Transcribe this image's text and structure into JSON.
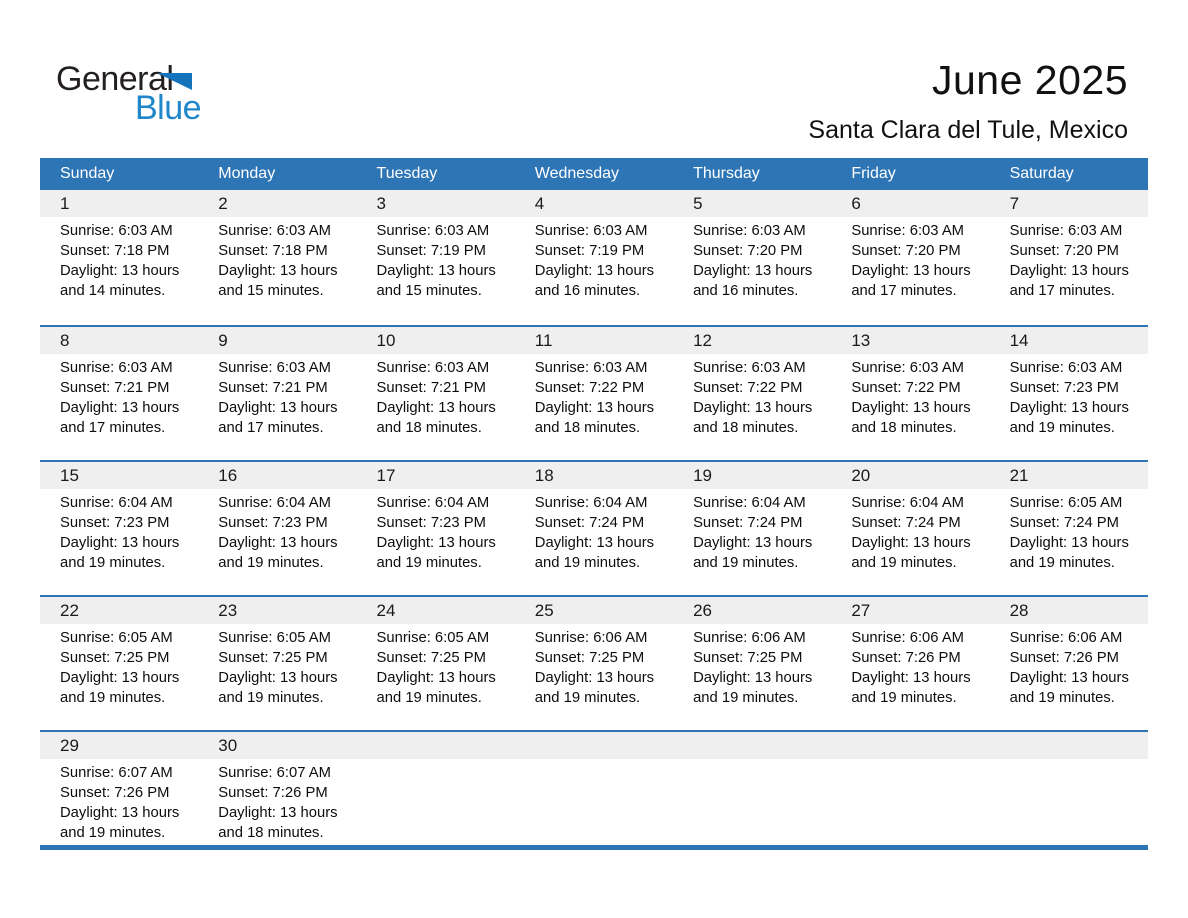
{
  "logo": {
    "general": "General",
    "blue": "Blue"
  },
  "header": {
    "title": "June 2025",
    "subtitle": "Santa Clara del Tule, Mexico"
  },
  "colors": {
    "header_bg": "#2e75b6",
    "separator": "#2e75b6",
    "day_strip_bg": "#efefef",
    "logo_triangle_blue": "#1573bb",
    "logo_text_blue": "#1e86c9"
  },
  "calendar": {
    "weekdays": [
      "Sunday",
      "Monday",
      "Tuesday",
      "Wednesday",
      "Thursday",
      "Friday",
      "Saturday"
    ],
    "weeks": [
      [
        {
          "day": "1",
          "sunrise": "Sunrise: 6:03 AM",
          "sunset": "Sunset: 7:18 PM",
          "daylight1": "Daylight: 13 hours",
          "daylight2": "and 14 minutes."
        },
        {
          "day": "2",
          "sunrise": "Sunrise: 6:03 AM",
          "sunset": "Sunset: 7:18 PM",
          "daylight1": "Daylight: 13 hours",
          "daylight2": "and 15 minutes."
        },
        {
          "day": "3",
          "sunrise": "Sunrise: 6:03 AM",
          "sunset": "Sunset: 7:19 PM",
          "daylight1": "Daylight: 13 hours",
          "daylight2": "and 15 minutes."
        },
        {
          "day": "4",
          "sunrise": "Sunrise: 6:03 AM",
          "sunset": "Sunset: 7:19 PM",
          "daylight1": "Daylight: 13 hours",
          "daylight2": "and 16 minutes."
        },
        {
          "day": "5",
          "sunrise": "Sunrise: 6:03 AM",
          "sunset": "Sunset: 7:20 PM",
          "daylight1": "Daylight: 13 hours",
          "daylight2": "and 16 minutes."
        },
        {
          "day": "6",
          "sunrise": "Sunrise: 6:03 AM",
          "sunset": "Sunset: 7:20 PM",
          "daylight1": "Daylight: 13 hours",
          "daylight2": "and 17 minutes."
        },
        {
          "day": "7",
          "sunrise": "Sunrise: 6:03 AM",
          "sunset": "Sunset: 7:20 PM",
          "daylight1": "Daylight: 13 hours",
          "daylight2": "and 17 minutes."
        }
      ],
      [
        {
          "day": "8",
          "sunrise": "Sunrise: 6:03 AM",
          "sunset": "Sunset: 7:21 PM",
          "daylight1": "Daylight: 13 hours",
          "daylight2": "and 17 minutes."
        },
        {
          "day": "9",
          "sunrise": "Sunrise: 6:03 AM",
          "sunset": "Sunset: 7:21 PM",
          "daylight1": "Daylight: 13 hours",
          "daylight2": "and 17 minutes."
        },
        {
          "day": "10",
          "sunrise": "Sunrise: 6:03 AM",
          "sunset": "Sunset: 7:21 PM",
          "daylight1": "Daylight: 13 hours",
          "daylight2": "and 18 minutes."
        },
        {
          "day": "11",
          "sunrise": "Sunrise: 6:03 AM",
          "sunset": "Sunset: 7:22 PM",
          "daylight1": "Daylight: 13 hours",
          "daylight2": "and 18 minutes."
        },
        {
          "day": "12",
          "sunrise": "Sunrise: 6:03 AM",
          "sunset": "Sunset: 7:22 PM",
          "daylight1": "Daylight: 13 hours",
          "daylight2": "and 18 minutes."
        },
        {
          "day": "13",
          "sunrise": "Sunrise: 6:03 AM",
          "sunset": "Sunset: 7:22 PM",
          "daylight1": "Daylight: 13 hours",
          "daylight2": "and 18 minutes."
        },
        {
          "day": "14",
          "sunrise": "Sunrise: 6:03 AM",
          "sunset": "Sunset: 7:23 PM",
          "daylight1": "Daylight: 13 hours",
          "daylight2": "and 19 minutes."
        }
      ],
      [
        {
          "day": "15",
          "sunrise": "Sunrise: 6:04 AM",
          "sunset": "Sunset: 7:23 PM",
          "daylight1": "Daylight: 13 hours",
          "daylight2": "and 19 minutes."
        },
        {
          "day": "16",
          "sunrise": "Sunrise: 6:04 AM",
          "sunset": "Sunset: 7:23 PM",
          "daylight1": "Daylight: 13 hours",
          "daylight2": "and 19 minutes."
        },
        {
          "day": "17",
          "sunrise": "Sunrise: 6:04 AM",
          "sunset": "Sunset: 7:23 PM",
          "daylight1": "Daylight: 13 hours",
          "daylight2": "and 19 minutes."
        },
        {
          "day": "18",
          "sunrise": "Sunrise: 6:04 AM",
          "sunset": "Sunset: 7:24 PM",
          "daylight1": "Daylight: 13 hours",
          "daylight2": "and 19 minutes."
        },
        {
          "day": "19",
          "sunrise": "Sunrise: 6:04 AM",
          "sunset": "Sunset: 7:24 PM",
          "daylight1": "Daylight: 13 hours",
          "daylight2": "and 19 minutes."
        },
        {
          "day": "20",
          "sunrise": "Sunrise: 6:04 AM",
          "sunset": "Sunset: 7:24 PM",
          "daylight1": "Daylight: 13 hours",
          "daylight2": "and 19 minutes."
        },
        {
          "day": "21",
          "sunrise": "Sunrise: 6:05 AM",
          "sunset": "Sunset: 7:24 PM",
          "daylight1": "Daylight: 13 hours",
          "daylight2": "and 19 minutes."
        }
      ],
      [
        {
          "day": "22",
          "sunrise": "Sunrise: 6:05 AM",
          "sunset": "Sunset: 7:25 PM",
          "daylight1": "Daylight: 13 hours",
          "daylight2": "and 19 minutes."
        },
        {
          "day": "23",
          "sunrise": "Sunrise: 6:05 AM",
          "sunset": "Sunset: 7:25 PM",
          "daylight1": "Daylight: 13 hours",
          "daylight2": "and 19 minutes."
        },
        {
          "day": "24",
          "sunrise": "Sunrise: 6:05 AM",
          "sunset": "Sunset: 7:25 PM",
          "daylight1": "Daylight: 13 hours",
          "daylight2": "and 19 minutes."
        },
        {
          "day": "25",
          "sunrise": "Sunrise: 6:06 AM",
          "sunset": "Sunset: 7:25 PM",
          "daylight1": "Daylight: 13 hours",
          "daylight2": "and 19 minutes."
        },
        {
          "day": "26",
          "sunrise": "Sunrise: 6:06 AM",
          "sunset": "Sunset: 7:25 PM",
          "daylight1": "Daylight: 13 hours",
          "daylight2": "and 19 minutes."
        },
        {
          "day": "27",
          "sunrise": "Sunrise: 6:06 AM",
          "sunset": "Sunset: 7:26 PM",
          "daylight1": "Daylight: 13 hours",
          "daylight2": "and 19 minutes."
        },
        {
          "day": "28",
          "sunrise": "Sunrise: 6:06 AM",
          "sunset": "Sunset: 7:26 PM",
          "daylight1": "Daylight: 13 hours",
          "daylight2": "and 19 minutes."
        }
      ],
      [
        {
          "day": "29",
          "sunrise": "Sunrise: 6:07 AM",
          "sunset": "Sunset: 7:26 PM",
          "daylight1": "Daylight: 13 hours",
          "daylight2": "and 19 minutes."
        },
        {
          "day": "30",
          "sunrise": "Sunrise: 6:07 AM",
          "sunset": "Sunset: 7:26 PM",
          "daylight1": "Daylight: 13 hours",
          "daylight2": "and 18 minutes."
        },
        null,
        null,
        null,
        null,
        null
      ]
    ]
  }
}
